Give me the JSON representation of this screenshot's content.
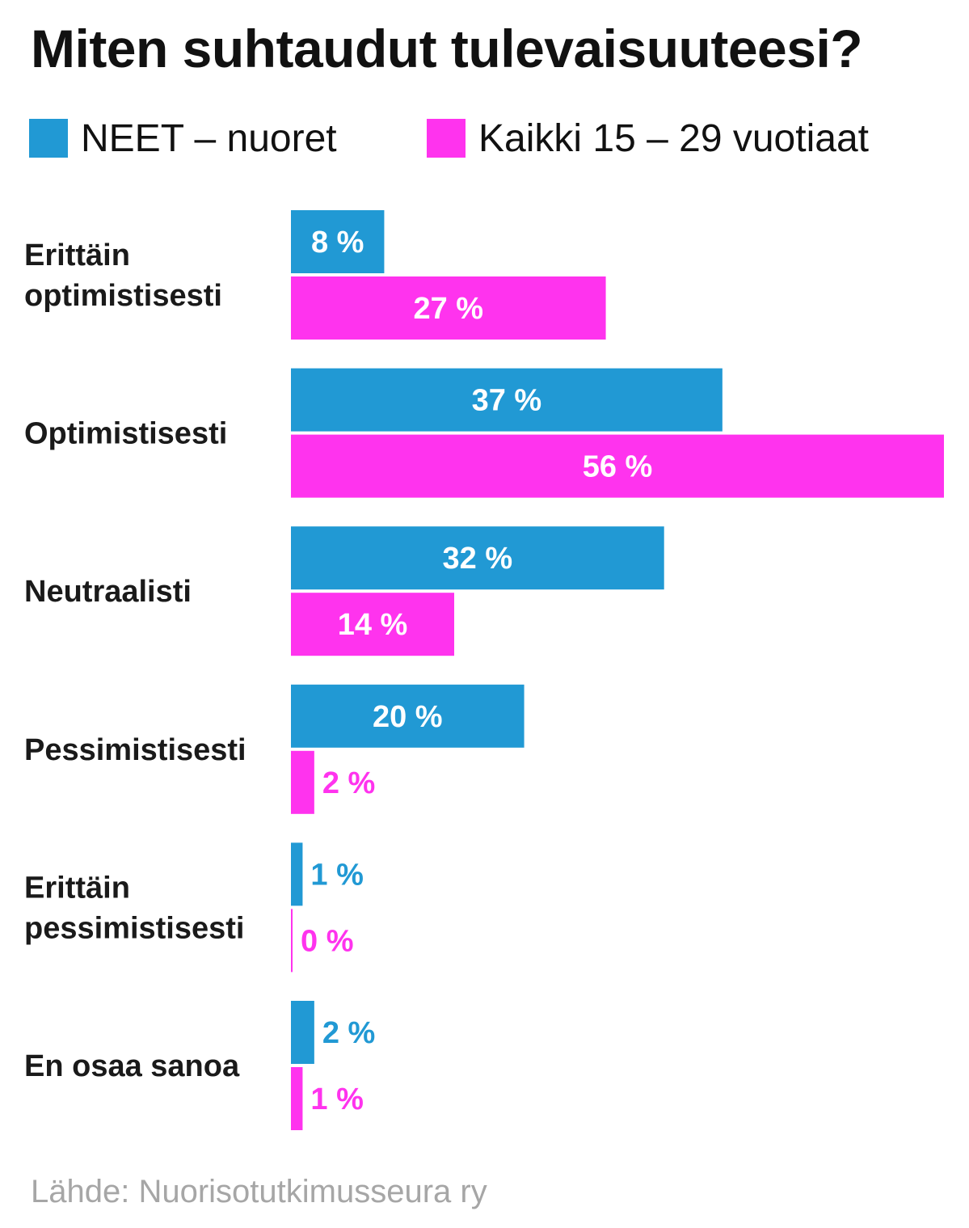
{
  "chart_data": {
    "type": "bar",
    "orientation": "horizontal",
    "title": "Miten suhtaudut tulevaisuuteesi?",
    "categories": [
      [
        "Erittäin",
        "optimistisesti"
      ],
      [
        "Optimistisesti"
      ],
      [
        "Neutraalisti"
      ],
      [
        "Pessimistisesti"
      ],
      [
        "Erittäin",
        "pessimistisesti"
      ],
      [
        "En osaa sanoa"
      ]
    ],
    "series": [
      {
        "name": "NEET – nuoret",
        "color": "#2199d4",
        "values": [
          8,
          37,
          32,
          20,
          1,
          2
        ]
      },
      {
        "name": "Kaikki 15 – 29 vuotiaat",
        "color": "#ff33ee",
        "values": [
          27,
          56,
          14,
          2,
          0,
          1
        ]
      }
    ],
    "value_suffix": " %",
    "xlim": [
      0,
      56
    ],
    "grid": false,
    "legend_position": "top-left",
    "source": "Lähde:  Nuorisotutkimusseura ry"
  }
}
